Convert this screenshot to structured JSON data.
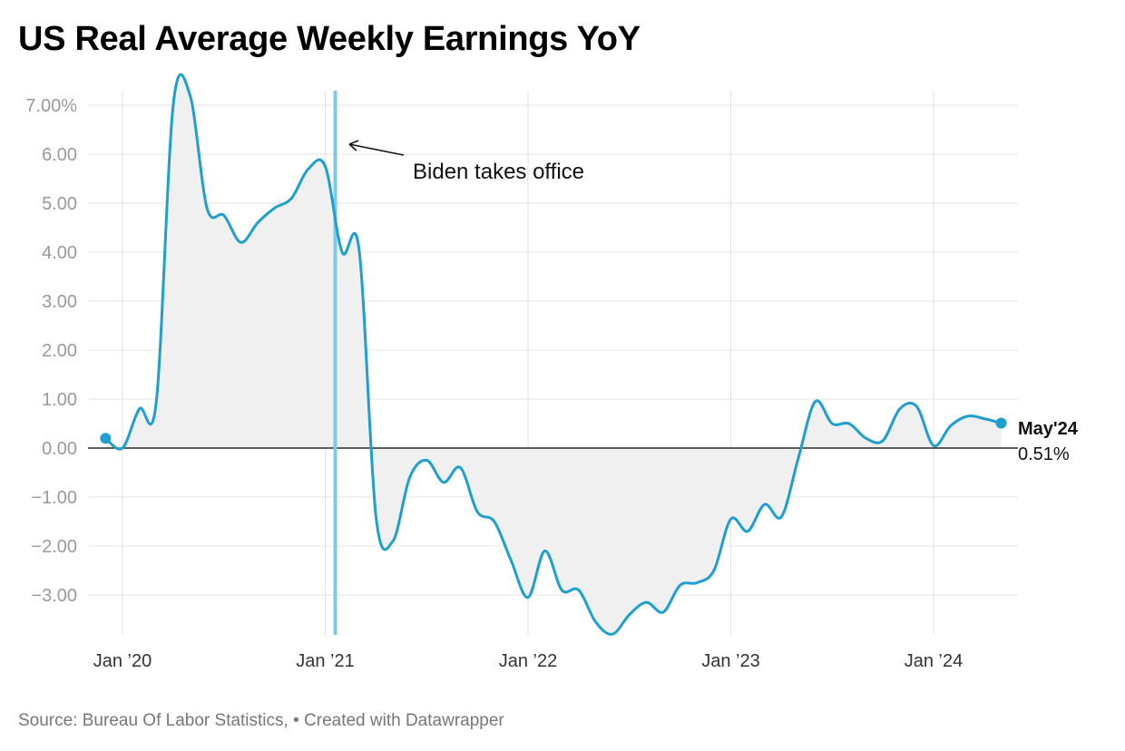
{
  "chart_data": {
    "type": "area",
    "title": "US Real Average Weekly Earnings YoY",
    "source": "Source: Bureau Of Labor Statistics, • Created with Datawrapper",
    "ylim": [
      -3.8,
      7.3
    ],
    "y_ticks": [
      {
        "value": 7,
        "label": "7.00%"
      },
      {
        "value": 6,
        "label": "6.00"
      },
      {
        "value": 5,
        "label": "5.00"
      },
      {
        "value": 4,
        "label": "4.00"
      },
      {
        "value": 3,
        "label": "3.00"
      },
      {
        "value": 2,
        "label": "2.00"
      },
      {
        "value": 1,
        "label": "1.00"
      },
      {
        "value": 0,
        "label": "0.00"
      },
      {
        "value": -1,
        "label": "−1.00"
      },
      {
        "value": -2,
        "label": "−2.00"
      },
      {
        "value": -3,
        "label": "−3.00"
      }
    ],
    "x_ticks": [
      {
        "date": "2020-01",
        "label": "Jan ’20"
      },
      {
        "date": "2021-01",
        "label": "Jan ’21"
      },
      {
        "date": "2022-01",
        "label": "Jan ’22"
      },
      {
        "date": "2023-01",
        "label": "Jan ’23"
      },
      {
        "date": "2024-01",
        "label": "Jan ’24"
      }
    ],
    "grid": true,
    "colors": {
      "line": "#1f9fcf",
      "area": "#f0f0f0",
      "marker": "#7dc9e6",
      "zero": "#000000",
      "grid": "#e3e3e3"
    },
    "marker": {
      "date": "2021-01",
      "label": "Biden takes office"
    },
    "end_label": {
      "title": "May'24",
      "value": "0.51%"
    },
    "series": [
      {
        "x": [
          "2019-12",
          "2020-01",
          "2020-02",
          "2020-03",
          "2020-04",
          "2020-05",
          "2020-06",
          "2020-07",
          "2020-08",
          "2020-09",
          "2020-10",
          "2020-11",
          "2020-12",
          "2021-01",
          "2021-02",
          "2021-03",
          "2021-04",
          "2021-05",
          "2021-06",
          "2021-07",
          "2021-08",
          "2021-09",
          "2021-10",
          "2021-11",
          "2021-12",
          "2022-01",
          "2022-02",
          "2022-03",
          "2022-04",
          "2022-05",
          "2022-06",
          "2022-07",
          "2022-08",
          "2022-09",
          "2022-10",
          "2022-11",
          "2022-12",
          "2023-01",
          "2023-02",
          "2023-03",
          "2023-04",
          "2023-05",
          "2023-06",
          "2023-07",
          "2023-08",
          "2023-09",
          "2023-10",
          "2023-11",
          "2023-12",
          "2024-01",
          "2024-02",
          "2024-03",
          "2024-04",
          "2024-05"
        ],
        "y": [
          0.2,
          0.0,
          0.8,
          0.95,
          7.0,
          7.2,
          4.9,
          4.75,
          4.2,
          4.6,
          4.9,
          5.1,
          5.7,
          5.75,
          4.0,
          4.05,
          -1.4,
          -1.9,
          -0.6,
          -0.25,
          -0.7,
          -0.4,
          -1.3,
          -1.5,
          -2.3,
          -3.05,
          -2.1,
          -2.9,
          -2.9,
          -3.55,
          -3.8,
          -3.4,
          -3.15,
          -3.35,
          -2.8,
          -2.75,
          -2.5,
          -1.45,
          -1.7,
          -1.15,
          -1.4,
          -0.2,
          0.95,
          0.5,
          0.5,
          0.2,
          0.15,
          0.8,
          0.85,
          0.05,
          0.45,
          0.65,
          0.6,
          0.51
        ]
      }
    ]
  }
}
